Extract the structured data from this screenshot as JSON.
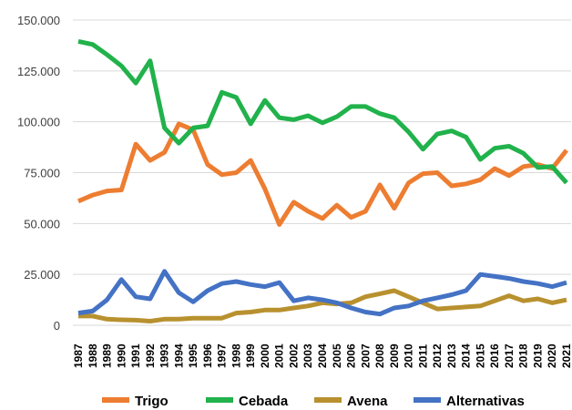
{
  "chart_data": {
    "type": "line",
    "x": [
      "1987",
      "1988",
      "1989",
      "1990",
      "1991",
      "1992",
      "1993",
      "1994",
      "1995",
      "1996",
      "1997",
      "1998",
      "1999",
      "2000",
      "2001",
      "2002",
      "2003",
      "2004",
      "2005",
      "2006",
      "2007",
      "2008",
      "2009",
      "2010",
      "2011",
      "2012",
      "2013",
      "2014",
      "2015",
      "2016",
      "2017",
      "2018",
      "2019",
      "2020",
      "2021"
    ],
    "series": [
      {
        "name": "Trigo",
        "color": "#ed7d31",
        "values": [
          61000,
          64000,
          66000,
          66500,
          89000,
          81000,
          85000,
          99000,
          96000,
          79000,
          74000,
          75000,
          81000,
          67000,
          49500,
          60500,
          56000,
          52500,
          59000,
          53000,
          56000,
          69000,
          57500,
          70000,
          74500,
          75000,
          68500,
          69500,
          71500,
          77000,
          73500,
          78000,
          79000,
          77000,
          86000
        ]
      },
      {
        "name": "Cebada",
        "color": "#21b24b",
        "values": [
          139500,
          138000,
          133000,
          127500,
          119000,
          130000,
          97000,
          89500,
          97000,
          98000,
          114500,
          112000,
          99000,
          110500,
          102000,
          101000,
          103000,
          99500,
          102500,
          107500,
          107500,
          104000,
          102000,
          95000,
          86500,
          94000,
          95500,
          92500,
          81500,
          87000,
          88000,
          84500,
          77500,
          78000,
          70000
        ]
      },
      {
        "name": "Avena",
        "color": "#b8912f",
        "values": [
          4500,
          4500,
          3000,
          2700,
          2500,
          2000,
          3000,
          3000,
          3500,
          3500,
          3500,
          6000,
          6500,
          7500,
          7500,
          8500,
          9500,
          11000,
          10500,
          11000,
          14000,
          15500,
          17000,
          14000,
          11000,
          8000,
          8500,
          9000,
          9500,
          12000,
          14500,
          12000,
          13000,
          11000,
          12500
        ]
      },
      {
        "name": "Alternativas",
        "color": "#4472c4",
        "values": [
          6000,
          7000,
          12500,
          22500,
          14000,
          13000,
          26500,
          16000,
          11500,
          17000,
          20500,
          21500,
          20000,
          19000,
          21000,
          12000,
          13500,
          12500,
          11000,
          8500,
          6500,
          5500,
          8500,
          9500,
          12000,
          13500,
          15000,
          17000,
          25000,
          24000,
          23000,
          21500,
          20500,
          19000,
          21000
        ]
      }
    ],
    "ylim": [
      0,
      150000
    ],
    "yticks": [
      0,
      {
        "value": 25000,
        "label": "25.000"
      },
      {
        "value": 50000,
        "label": "50.000"
      },
      {
        "value": 75000,
        "label": "75.000"
      },
      {
        "value": 100000,
        "label": "100.000"
      },
      {
        "value": 125000,
        "label": "125.000"
      },
      {
        "value": 150000,
        "label": "150.000"
      }
    ],
    "grid": true,
    "legend": "bottom"
  }
}
